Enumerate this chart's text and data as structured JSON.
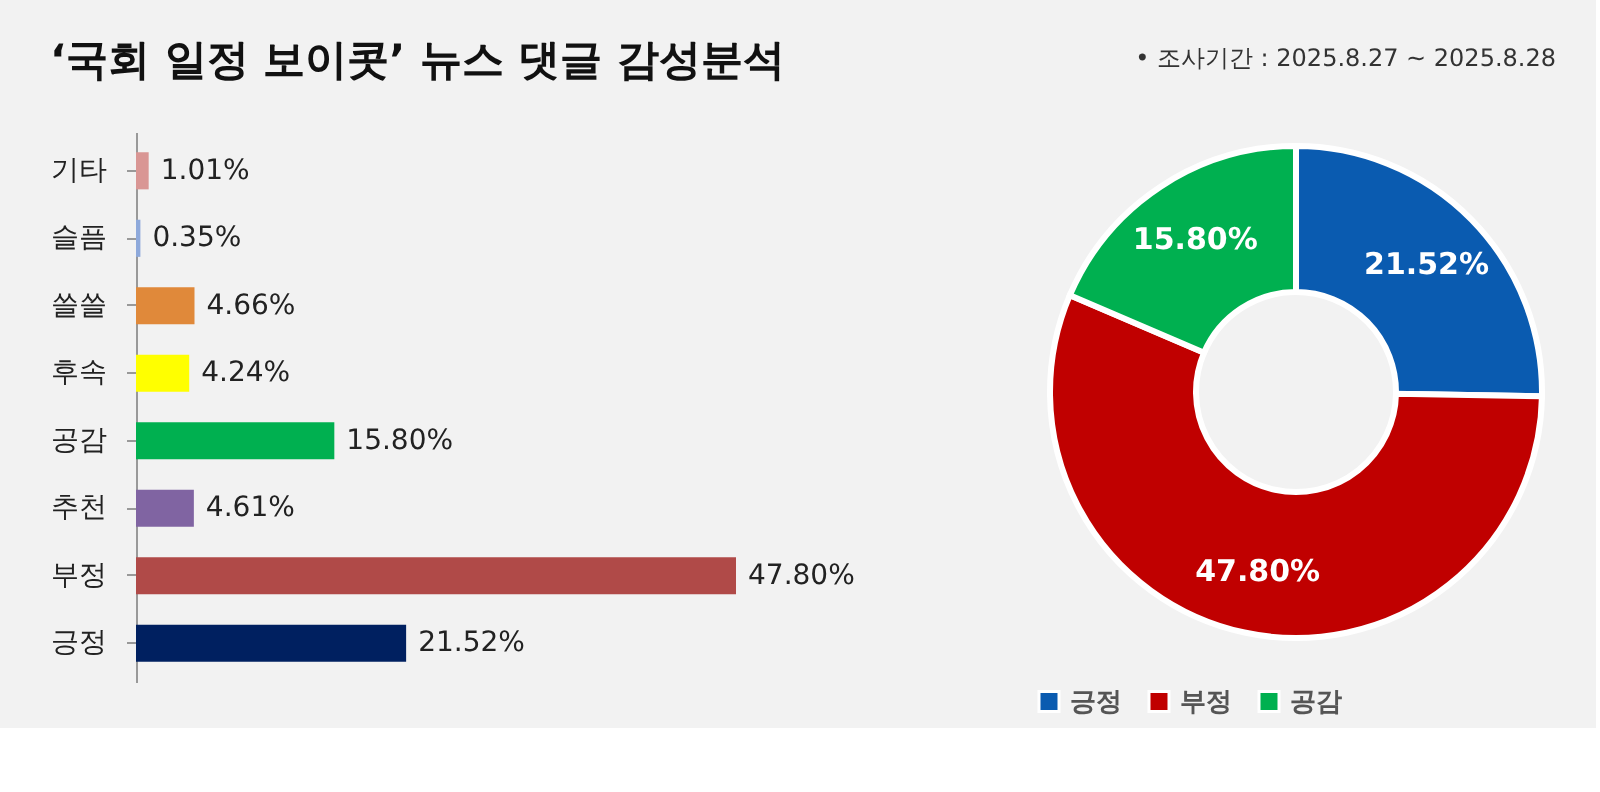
{
  "chart_data": [
    {
      "type": "bar",
      "orientation": "horizontal",
      "title": "‘국회 일정 보이콧’ 뉴스 댓글 감성분석",
      "categories": [
        "기타",
        "슬픔",
        "쓸쓸",
        "후속",
        "공감",
        "추천",
        "부정",
        "긍정"
      ],
      "values": [
        1.01,
        0.35,
        4.66,
        4.24,
        15.8,
        4.61,
        47.8,
        21.52
      ],
      "value_labels": [
        "1.01%",
        "0.35%",
        "4.66%",
        "4.24%",
        "15.80%",
        "4.61%",
        "47.80%",
        "21.52%"
      ],
      "colors": [
        "#d99694",
        "#8ea9db",
        "#e0893a",
        "#ffff00",
        "#00b050",
        "#8064a2",
        "#b04a48",
        "#002060"
      ],
      "tick_labels": "y",
      "grid": false,
      "legend": false
    },
    {
      "type": "donut",
      "annotations": [
        "•   조사기간 : 2025.8.27 ~ 2025.8.28"
      ],
      "categories": [
        "긍정",
        "부정",
        "공감"
      ],
      "values": [
        21.52,
        47.8,
        15.8
      ],
      "value_labels": [
        "21.52%",
        "47.80%",
        "15.80%"
      ],
      "colors": [
        "#0a5bb0",
        "#c00000",
        "#00b050"
      ],
      "legend": "bottom"
    }
  ]
}
